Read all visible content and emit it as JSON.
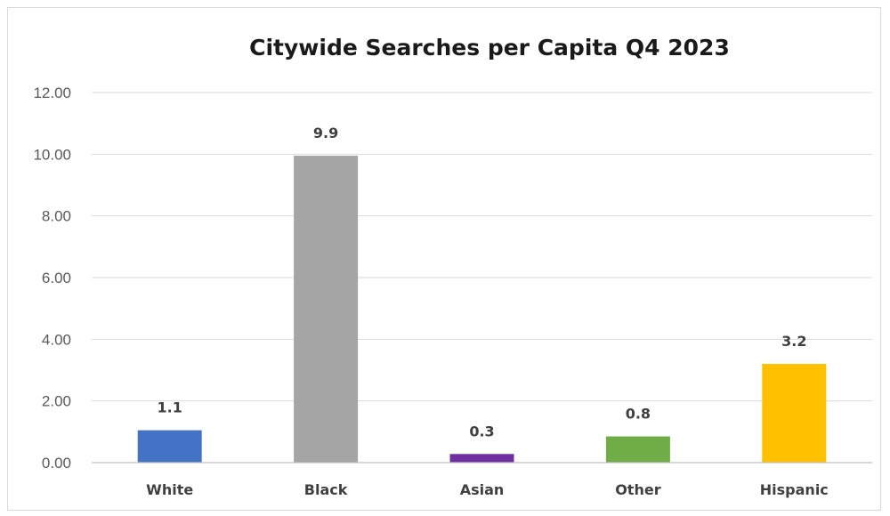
{
  "chart_data": {
    "type": "bar",
    "title": "Citywide Searches per Capita Q4 2023",
    "categories": [
      "White",
      "Black",
      "Asian",
      "Other",
      "Hispanic"
    ],
    "values": [
      1.05,
      9.95,
      0.28,
      0.85,
      3.2
    ],
    "data_labels": [
      "1.1",
      "9.9",
      "0.3",
      "0.8",
      "3.2"
    ],
    "colors": [
      "#4472c4",
      "#a5a5a5",
      "#7030a0",
      "#70ad47",
      "#ffc000"
    ],
    "ylim": [
      0,
      12
    ],
    "yticks": [
      "0.00",
      "2.00",
      "4.00",
      "6.00",
      "8.00",
      "10.00",
      "12.00"
    ],
    "xlabel": "",
    "ylabel": "",
    "grid": true,
    "legend": "none"
  }
}
